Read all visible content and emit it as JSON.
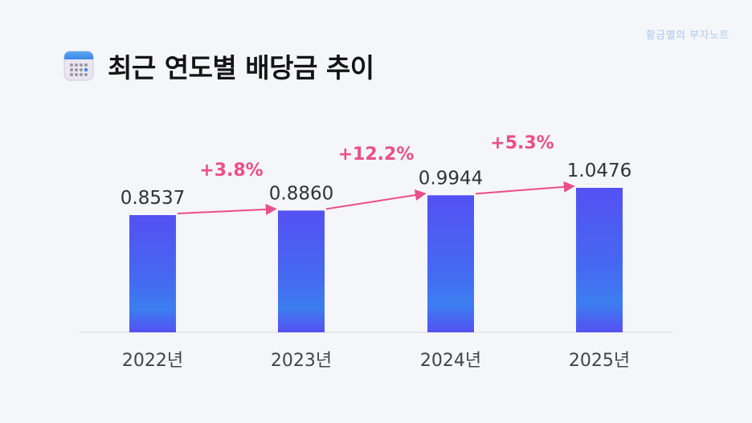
{
  "watermark": "황금별의 부자노트",
  "header": {
    "title": "최근 연도별 배당금 추이",
    "icon": "calendar-icon"
  },
  "colors": {
    "bar_top": "#5451f2",
    "bar_bottom": "#3c7ef0",
    "growth": "#ea4f85",
    "background": "#f5f6fa"
  },
  "chart_data": {
    "type": "bar",
    "title": "최근 연도별 배당금 추이",
    "categories": [
      "2022년",
      "2023년",
      "2024년",
      "2025년"
    ],
    "values": [
      0.8537,
      0.886,
      0.9944,
      1.0476
    ],
    "value_labels": [
      "0.8537",
      "0.8860",
      "0.9944",
      "1.0476"
    ],
    "growth_labels": [
      "+3.8%",
      "+12.2%",
      "+5.3%"
    ],
    "xlabel": "",
    "ylabel": "",
    "ylim": [
      0,
      1.0476
    ],
    "grid": false,
    "legend": "none"
  }
}
